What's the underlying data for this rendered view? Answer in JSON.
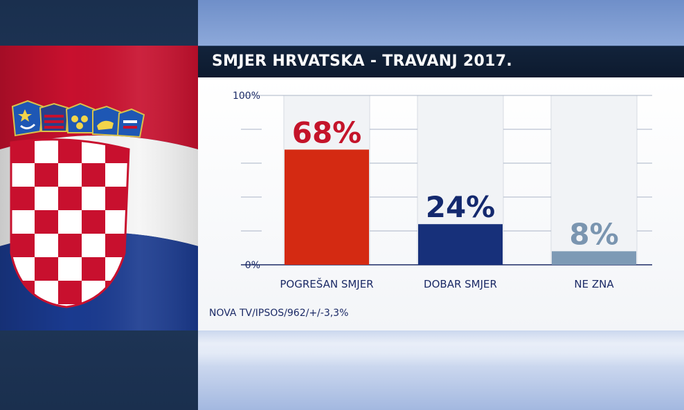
{
  "colors": {
    "flag_red": "#c8102e",
    "flag_white": "#ffffff",
    "flag_blue": "#1a3a8f",
    "bar_red": "#d42a12",
    "bar_blue": "#17307a",
    "bar_gray": "#7d9ab5",
    "label_red": "#c4142a",
    "label_blue": "#14296e",
    "label_gray": "#7a95b0",
    "axis_text": "#1b2a66"
  },
  "footnote": "NOVA TV/IPSOS/962/+/-3,3%",
  "chart_data": {
    "type": "bar",
    "title": "SMJER HRVATSKA - TRAVANJ 2017.",
    "categories": [
      "POGREŠAN SMJER",
      "DOBAR SMJER",
      "NE ZNA"
    ],
    "values": [
      68,
      24,
      8
    ],
    "value_labels": [
      "68%",
      "24%",
      "8%"
    ],
    "bar_colors": [
      "#d42a12",
      "#17307a",
      "#7d9ab5"
    ],
    "label_colors": [
      "#c4142a",
      "#14296e",
      "#7a95b0"
    ],
    "ylim": [
      0,
      100
    ],
    "ytick_labels": [
      "0%",
      "100%"
    ],
    "grid": true,
    "xlabel": "",
    "ylabel": ""
  }
}
